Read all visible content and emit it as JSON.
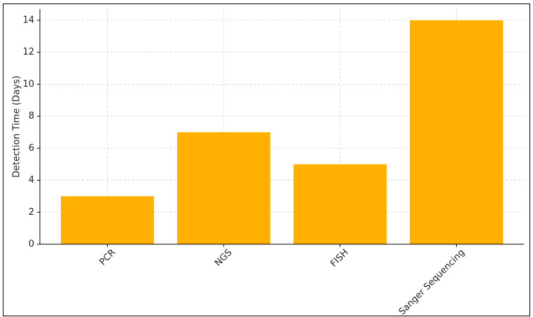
{
  "chart_data": {
    "type": "bar",
    "y_label": "Detection Time (Days)",
    "categories": [
      "PCR",
      "NGS",
      "FISH",
      "Sanger Sequencing"
    ],
    "values": [
      3,
      7,
      5,
      14
    ],
    "color": "#ffb000",
    "ylim": [
      0,
      14.7
    ],
    "yticks": [
      0,
      2,
      4,
      6,
      8,
      10,
      12,
      14
    ],
    "grid": true
  }
}
